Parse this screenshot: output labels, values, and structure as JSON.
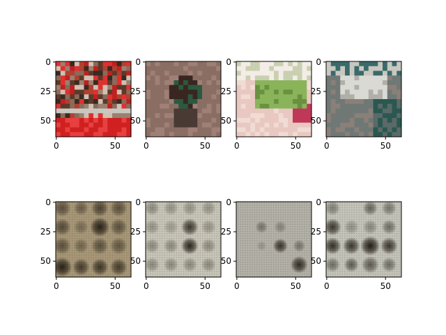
{
  "figure": {
    "background": "#ffffff",
    "frame_color": "#000000",
    "tick_color": "#000000"
  },
  "chart_data": [
    {
      "type": "image",
      "row": "original",
      "subject": "crowd of people with red fabric",
      "xticks": [
        0,
        50
      ],
      "yticks": [
        0,
        25,
        50
      ],
      "image_extent": [
        -0.5,
        63.5,
        63.5,
        -0.5
      ],
      "y_inverted": true,
      "palette": [
        "#5a3a2a",
        "#8a6a5a",
        "#b04030",
        "#c02020",
        "#e03030",
        "#3a2a20",
        "#d0c0b0",
        "#9a8070"
      ]
    },
    {
      "type": "image",
      "row": "original",
      "subject": "wood duck on water",
      "xticks": [
        0,
        50
      ],
      "yticks": [
        0,
        25,
        50
      ],
      "image_extent": [
        -0.5,
        63.5,
        63.5,
        -0.5
      ],
      "y_inverted": true,
      "palette": [
        "#8a6a60",
        "#6a5048",
        "#a08278",
        "#3a2620",
        "#5a4a40"
      ]
    },
    {
      "type": "image",
      "row": "original",
      "subject": "green grasshopper on hand",
      "xticks": [
        0,
        50
      ],
      "yticks": [
        0,
        25,
        50
      ],
      "image_extent": [
        -0.5,
        63.5,
        63.5,
        -0.5
      ],
      "y_inverted": true,
      "palette": [
        "#e8d0c8",
        "#90b060",
        "#7aa050",
        "#c04060",
        "#f0e8e0",
        "#d8b0a8"
      ]
    },
    {
      "type": "image",
      "row": "original",
      "subject": "dining table with chairs",
      "xticks": [
        0,
        50
      ],
      "yticks": [
        0,
        25,
        50
      ],
      "image_extent": [
        -0.5,
        63.5,
        63.5,
        -0.5
      ],
      "y_inverted": true,
      "palette": [
        "#2a5050",
        "#d0d0d0",
        "#8a7a70",
        "#606868",
        "#a09080",
        "#3a6a68"
      ]
    },
    {
      "type": "image",
      "row": "reconstruction",
      "subject": "blurred grid pattern, dark blobs",
      "xticks": [
        0,
        50
      ],
      "yticks": [
        0,
        25,
        50
      ],
      "image_extent": [
        -0.5,
        63.5,
        63.5,
        -0.5
      ],
      "y_inverted": true,
      "background": "#a89878",
      "blob_color": "#1a140c",
      "blobs": [
        {
          "x": 5,
          "y": 5,
          "r": 7,
          "a": 0.55
        },
        {
          "x": 21,
          "y": 5,
          "r": 6,
          "a": 0.45
        },
        {
          "x": 37,
          "y": 5,
          "r": 7,
          "a": 0.65
        },
        {
          "x": 53,
          "y": 5,
          "r": 7,
          "a": 0.55
        },
        {
          "x": 5,
          "y": 21,
          "r": 7,
          "a": 0.6
        },
        {
          "x": 21,
          "y": 21,
          "r": 6,
          "a": 0.35
        },
        {
          "x": 37,
          "y": 21,
          "r": 8,
          "a": 0.9
        },
        {
          "x": 53,
          "y": 21,
          "r": 7,
          "a": 0.55
        },
        {
          "x": 5,
          "y": 37,
          "r": 7,
          "a": 0.55
        },
        {
          "x": 21,
          "y": 37,
          "r": 6,
          "a": 0.4
        },
        {
          "x": 37,
          "y": 37,
          "r": 7,
          "a": 0.55
        },
        {
          "x": 53,
          "y": 37,
          "r": 7,
          "a": 0.5
        },
        {
          "x": 5,
          "y": 55,
          "r": 8,
          "a": 0.9
        },
        {
          "x": 21,
          "y": 55,
          "r": 7,
          "a": 0.7
        },
        {
          "x": 37,
          "y": 55,
          "r": 7,
          "a": 0.75
        },
        {
          "x": 53,
          "y": 55,
          "r": 7,
          "a": 0.7
        }
      ]
    },
    {
      "type": "image",
      "row": "reconstruction",
      "subject": "blurred grid pattern, dark blobs",
      "xticks": [
        0,
        50
      ],
      "yticks": [
        0,
        25,
        50
      ],
      "image_extent": [
        -0.5,
        63.5,
        63.5,
        -0.5
      ],
      "y_inverted": true,
      "background": "#c8c6b8",
      "blob_color": "#1a140c",
      "blobs": [
        {
          "x": 5,
          "y": 5,
          "r": 6,
          "a": 0.35
        },
        {
          "x": 21,
          "y": 5,
          "r": 6,
          "a": 0.3
        },
        {
          "x": 37,
          "y": 5,
          "r": 6,
          "a": 0.3
        },
        {
          "x": 53,
          "y": 5,
          "r": 6,
          "a": 0.3
        },
        {
          "x": 5,
          "y": 21,
          "r": 6,
          "a": 0.3
        },
        {
          "x": 21,
          "y": 21,
          "r": 6,
          "a": 0.25
        },
        {
          "x": 37,
          "y": 21,
          "r": 7,
          "a": 0.8
        },
        {
          "x": 53,
          "y": 21,
          "r": 6,
          "a": 0.3
        },
        {
          "x": 5,
          "y": 37,
          "r": 6,
          "a": 0.35
        },
        {
          "x": 21,
          "y": 37,
          "r": 6,
          "a": 0.35
        },
        {
          "x": 37,
          "y": 37,
          "r": 7,
          "a": 0.9
        },
        {
          "x": 53,
          "y": 37,
          "r": 6,
          "a": 0.35
        },
        {
          "x": 5,
          "y": 53,
          "r": 6,
          "a": 0.35
        },
        {
          "x": 21,
          "y": 53,
          "r": 6,
          "a": 0.35
        },
        {
          "x": 37,
          "y": 53,
          "r": 6,
          "a": 0.35
        },
        {
          "x": 53,
          "y": 53,
          "r": 6,
          "a": 0.35
        }
      ]
    },
    {
      "type": "image",
      "row": "reconstruction",
      "subject": "mostly flat grey, few dark blobs",
      "xticks": [
        0,
        50
      ],
      "yticks": [
        0,
        25,
        50
      ],
      "image_extent": [
        -0.5,
        63.5,
        63.5,
        -0.5
      ],
      "y_inverted": true,
      "background": "#b4b2a8",
      "blob_color": "#1a140c",
      "blobs": [
        {
          "x": 21,
          "y": 21,
          "r": 5,
          "a": 0.4
        },
        {
          "x": 37,
          "y": 21,
          "r": 5,
          "a": 0.3
        },
        {
          "x": 21,
          "y": 37,
          "r": 4,
          "a": 0.2
        },
        {
          "x": 37,
          "y": 37,
          "r": 6,
          "a": 0.8
        },
        {
          "x": 53,
          "y": 37,
          "r": 5,
          "a": 0.4
        },
        {
          "x": 53,
          "y": 53,
          "r": 7,
          "a": 0.85
        }
      ]
    },
    {
      "type": "image",
      "row": "reconstruction",
      "subject": "light grey with dark blobs",
      "xticks": [
        0,
        50
      ],
      "yticks": [
        0,
        25,
        50
      ],
      "image_extent": [
        -0.5,
        63.5,
        63.5,
        -0.5
      ],
      "y_inverted": true,
      "background": "#c4c4ba",
      "blob_color": "#1a140c",
      "blobs": [
        {
          "x": 5,
          "y": 5,
          "r": 6,
          "a": 0.4
        },
        {
          "x": 37,
          "y": 5,
          "r": 6,
          "a": 0.55
        },
        {
          "x": 53,
          "y": 5,
          "r": 6,
          "a": 0.45
        },
        {
          "x": 5,
          "y": 21,
          "r": 7,
          "a": 0.8
        },
        {
          "x": 21,
          "y": 21,
          "r": 6,
          "a": 0.3
        },
        {
          "x": 37,
          "y": 21,
          "r": 6,
          "a": 0.35
        },
        {
          "x": 53,
          "y": 21,
          "r": 6,
          "a": 0.5
        },
        {
          "x": 5,
          "y": 37,
          "r": 7,
          "a": 0.85
        },
        {
          "x": 21,
          "y": 37,
          "r": 7,
          "a": 0.8
        },
        {
          "x": 37,
          "y": 37,
          "r": 8,
          "a": 0.95
        },
        {
          "x": 53,
          "y": 37,
          "r": 7,
          "a": 0.8
        },
        {
          "x": 5,
          "y": 53,
          "r": 6,
          "a": 0.5
        },
        {
          "x": 21,
          "y": 53,
          "r": 6,
          "a": 0.6
        },
        {
          "x": 37,
          "y": 53,
          "r": 7,
          "a": 0.6
        },
        {
          "x": 53,
          "y": 53,
          "r": 6,
          "a": 0.5
        }
      ]
    }
  ]
}
